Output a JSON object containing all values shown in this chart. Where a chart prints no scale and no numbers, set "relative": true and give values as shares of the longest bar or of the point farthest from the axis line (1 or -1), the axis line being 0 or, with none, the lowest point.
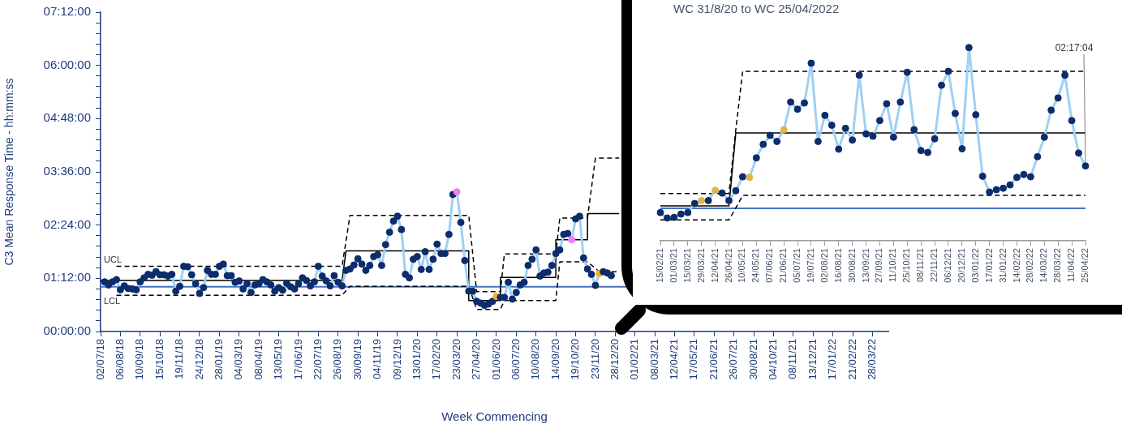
{
  "chart_data": [
    {
      "type": "line",
      "xlabel": "Week Commencing",
      "ylabel": "C3 Mean Response Time - hh:mm:ss",
      "marker": "circle",
      "x": [
        "2018-07-09",
        "2018-07-16",
        "2018-07-23",
        "2018-07-30",
        "2018-08-06",
        "2018-08-13",
        "2018-08-20",
        "2018-08-27",
        "2018-09-03",
        "2018-09-10",
        "2018-09-17",
        "2018-09-24",
        "2018-10-01",
        "2018-10-08",
        "2018-10-15",
        "2018-10-22",
        "2018-10-29",
        "2018-11-05",
        "2018-11-12",
        "2018-11-19",
        "2018-11-26",
        "2018-12-03",
        "2018-12-10",
        "2018-12-17",
        "2018-12-24",
        "2018-12-31",
        "2019-01-07",
        "2019-01-14",
        "2019-01-21",
        "2019-01-28",
        "2019-02-04",
        "2019-02-11",
        "2019-02-18",
        "2019-02-25",
        "2019-03-04",
        "2019-03-11",
        "2019-03-18",
        "2019-03-25",
        "2019-04-01",
        "2019-04-08",
        "2019-04-15",
        "2019-04-22",
        "2019-04-29",
        "2019-05-06",
        "2019-05-13",
        "2019-05-20",
        "2019-05-27",
        "2019-06-03",
        "2019-06-10",
        "2019-06-17",
        "2019-06-24",
        "2019-07-01",
        "2019-07-08",
        "2019-07-15",
        "2019-07-22",
        "2019-07-29",
        "2019-08-05",
        "2019-08-12",
        "2019-08-19",
        "2019-08-26",
        "2019-09-02",
        "2019-09-09",
        "2019-09-16",
        "2019-09-23",
        "2019-09-30",
        "2019-10-07",
        "2019-10-14",
        "2019-10-21",
        "2019-10-28",
        "2019-11-04",
        "2019-11-11",
        "2019-11-18",
        "2019-11-25",
        "2019-12-02",
        "2019-12-09",
        "2019-12-16",
        "2019-12-23",
        "2019-12-30",
        "2020-01-06",
        "2020-01-13",
        "2020-01-20",
        "2020-01-27",
        "2020-02-03",
        "2020-02-10",
        "2020-02-17",
        "2020-02-24",
        "2020-03-02",
        "2020-03-09",
        "2020-03-16",
        "2020-03-23",
        "2020-03-30",
        "2020-04-06",
        "2020-04-13",
        "2020-04-20",
        "2020-04-27",
        "2020-05-04",
        "2020-05-11",
        "2020-05-18",
        "2020-05-25",
        "2020-06-01",
        "2020-06-08",
        "2020-06-15",
        "2020-06-22",
        "2020-06-29",
        "2020-07-06",
        "2020-07-13",
        "2020-07-20",
        "2020-07-27",
        "2020-08-03",
        "2020-08-10",
        "2020-08-17",
        "2020-08-24",
        "2020-08-31",
        "2020-09-07",
        "2020-09-14",
        "2020-09-21",
        "2020-09-28",
        "2020-10-05",
        "2020-10-12",
        "2020-10-19",
        "2020-10-26",
        "2020-11-02",
        "2020-11-09",
        "2020-11-16",
        "2020-11-23",
        "2020-11-30",
        "2020-12-07",
        "2020-12-14",
        "2020-12-21"
      ],
      "series": [
        {
          "color": "#9fd0f5",
          "values": [
            1.12,
            1.05,
            1.12,
            1.17,
            0.94,
            1.03,
            0.97,
            0.96,
            0.94,
            1.12,
            1.21,
            1.29,
            1.27,
            1.35,
            1.28,
            1.28,
            1.25,
            1.29,
            0.91,
            1.02,
            1.47,
            1.46,
            1.28,
            1.08,
            0.86,
            0.99,
            1.38,
            1.29,
            1.29,
            1.47,
            1.52,
            1.26,
            1.26,
            1.11,
            1.14,
            0.96,
            1.08,
            0.88,
            1.05,
            1.08,
            1.17,
            1.12,
            1.05,
            0.91,
            0.99,
            0.93,
            1.09,
            1.01,
            0.96,
            1.08,
            1.21,
            1.15,
            1.03,
            1.12,
            1.47,
            1.25,
            1.14,
            1.03,
            1.26,
            1.11,
            1.03,
            1.38,
            1.41,
            1.5,
            1.64,
            1.52,
            1.38,
            1.49,
            1.69,
            1.73,
            1.49,
            1.96,
            2.24,
            2.49,
            2.6,
            2.3,
            1.29,
            1.21,
            1.63,
            1.69,
            1.4,
            1.8,
            1.4,
            1.63,
            1.97,
            1.76,
            1.76,
            2.19,
            3.09,
            3.15,
            2.46,
            1.6,
            0.91,
            0.91,
            0.68,
            0.64,
            0.59,
            0.62,
            0.68,
            0.79,
            0.77,
            0.77,
            1.11,
            0.73,
            0.88,
            1.05,
            1.11,
            1.49,
            1.63,
            1.84,
            1.25,
            1.32,
            1.34,
            1.49,
            1.76,
            1.84,
            2.19,
            2.21,
            2.07,
            2.54,
            2.6,
            1.66,
            1.41,
            1.29,
            1.04,
            1.31,
            1.35,
            1.32,
            1.26
          ],
          "colors": [
            "#0d2c6c",
            "#0d2c6c",
            "#0d2c6c",
            "#0d2c6c",
            "#0d2c6c",
            "#0d2c6c",
            "#0d2c6c",
            "#0d2c6c",
            "#0d2c6c",
            "#0d2c6c",
            "#0d2c6c",
            "#0d2c6c",
            "#0d2c6c",
            "#0d2c6c",
            "#0d2c6c",
            "#0d2c6c",
            "#0d2c6c",
            "#0d2c6c",
            "#0d2c6c",
            "#0d2c6c",
            "#0d2c6c",
            "#0d2c6c",
            "#0d2c6c",
            "#0d2c6c",
            "#0d2c6c",
            "#0d2c6c",
            "#0d2c6c",
            "#0d2c6c",
            "#0d2c6c",
            "#0d2c6c",
            "#0d2c6c",
            "#0d2c6c",
            "#0d2c6c",
            "#0d2c6c",
            "#0d2c6c",
            "#0d2c6c",
            "#0d2c6c",
            "#0d2c6c",
            "#0d2c6c",
            "#0d2c6c",
            "#0d2c6c",
            "#0d2c6c",
            "#0d2c6c",
            "#0d2c6c",
            "#0d2c6c",
            "#0d2c6c",
            "#0d2c6c",
            "#0d2c6c",
            "#0d2c6c",
            "#0d2c6c",
            "#0d2c6c",
            "#0d2c6c",
            "#0d2c6c",
            "#0d2c6c",
            "#0d2c6c",
            "#0d2c6c",
            "#0d2c6c",
            "#0d2c6c",
            "#0d2c6c",
            "#0d2c6c",
            "#0d2c6c",
            "#0d2c6c",
            "#0d2c6c",
            "#0d2c6c",
            "#0d2c6c",
            "#0d2c6c",
            "#0d2c6c",
            "#0d2c6c",
            "#0d2c6c",
            "#0d2c6c",
            "#0d2c6c",
            "#0d2c6c",
            "#0d2c6c",
            "#0d2c6c",
            "#0d2c6c",
            "#0d2c6c",
            "#0d2c6c",
            "#0d2c6c",
            "#0d2c6c",
            "#0d2c6c",
            "#0d2c6c",
            "#0d2c6c",
            "#0d2c6c",
            "#0d2c6c",
            "#0d2c6c",
            "#0d2c6c",
            "#0d2c6c",
            "#0d2c6c",
            "#0d2c6c",
            "#f07ef0",
            "#0d2c6c",
            "#0d2c6c",
            "#0d2c6c",
            "#0d2c6c",
            "#0d2c6c",
            "#0d2c6c",
            "#0d2c6c",
            "#0d2c6c",
            "#0d2c6c",
            "#f2b01e",
            "#0d2c6c",
            "#0d2c6c",
            "#0d2c6c",
            "#0d2c6c",
            "#0d2c6c",
            "#0d2c6c",
            "#0d2c6c",
            "#0d2c6c",
            "#0d2c6c",
            "#0d2c6c",
            "#0d2c6c",
            "#0d2c6c",
            "#0d2c6c",
            "#0d2c6c",
            "#0d2c6c",
            "#0d2c6c",
            "#0d2c6c",
            "#0d2c6c",
            "#f07ef0",
            "#0d2c6c",
            "#0d2c6c",
            "#0d2c6c",
            "#0d2c6c",
            "#0d2c6c",
            "#0d2c6c",
            "#f2b01e",
            "#0d2c6c",
            "#0d2c6c",
            "#0d2c6c"
          ]
        },
        {
          "name": "UCL",
          "color": "#000000",
          "line_style": "dashed",
          "marker": "none",
          "x": [
            "2018-07-30",
            "2019-09-02",
            "2019-09-16",
            "2020-04-13",
            "2020-04-27",
            "2020-06-08",
            "2020-06-15",
            "2020-09-14",
            "2020-09-21",
            "2020-11-09",
            "2020-11-23",
            "2021-01-04"
          ],
          "values": [
            1.47,
            1.47,
            2.62,
            2.62,
            0.9,
            0.9,
            1.75,
            1.75,
            2.56,
            2.56,
            3.91,
            3.91
          ]
        },
        {
          "color": "#000000",
          "marker": "none",
          "x": [
            "2018-07-02",
            "2019-09-02",
            "2019-09-09",
            "2020-04-13",
            "2020-04-13",
            "2020-06-08",
            "2020-06-08",
            "2020-09-14",
            "2020-09-14",
            "2020-11-09",
            "2020-11-09",
            "2021-01-04"
          ],
          "values": [
            1.15,
            1.15,
            1.82,
            1.82,
            0.7,
            0.7,
            1.22,
            1.22,
            2.07,
            2.07,
            2.66,
            2.66
          ]
        },
        {
          "name": "LCL",
          "color": "#000000",
          "line_style": "dashed",
          "marker": "none",
          "x": [
            "2018-07-30",
            "2019-09-02",
            "2019-09-16",
            "2020-04-13",
            "2020-04-27",
            "2020-06-08",
            "2020-06-15",
            "2020-09-14",
            "2020-09-21",
            "2020-11-09",
            "2020-11-30",
            "2021-01-04"
          ],
          "values": [
            0.82,
            0.82,
            1.02,
            1.02,
            0.5,
            0.5,
            0.7,
            0.7,
            1.57,
            1.57,
            1.35,
            1.35
          ]
        }
      ],
      "ref_lines": [
        {
          "axis": "y",
          "value": 1.01,
          "color": "#4472c4"
        }
      ],
      "xlim": [
        "2018-07-02",
        "2022-04-25"
      ],
      "xticks": [
        {
          "value": "2018-07-02",
          "label": "02/07/18"
        },
        {
          "value": "2018-08-06",
          "label": "06/08/18"
        },
        {
          "value": "2018-09-10",
          "label": "10/09/18"
        },
        {
          "value": "2018-10-15",
          "label": "15/10/18"
        },
        {
          "value": "2018-11-19",
          "label": "19/11/18"
        },
        {
          "value": "2018-12-24",
          "label": "24/12/18"
        },
        {
          "value": "2019-01-28",
          "label": "28/01/19"
        },
        {
          "value": "2019-03-04",
          "label": "04/03/19"
        },
        {
          "value": "2019-04-08",
          "label": "08/04/19"
        },
        {
          "value": "2019-05-13",
          "label": "13/05/19"
        },
        {
          "value": "2019-06-17",
          "label": "17/06/19"
        },
        {
          "value": "2019-07-22",
          "label": "22/07/19"
        },
        {
          "value": "2019-08-26",
          "label": "26/08/19"
        },
        {
          "value": "2019-09-30",
          "label": "30/09/19"
        },
        {
          "value": "2019-11-04",
          "label": "04/11/19"
        },
        {
          "value": "2019-12-09",
          "label": "09/12/19"
        },
        {
          "value": "2020-01-13",
          "label": "13/01/20"
        },
        {
          "value": "2020-02-17",
          "label": "17/02/20"
        },
        {
          "value": "2020-03-23",
          "label": "23/03/20"
        },
        {
          "value": "2020-04-27",
          "label": "27/04/20"
        },
        {
          "value": "2020-06-01",
          "label": "01/06/20"
        },
        {
          "value": "2020-07-06",
          "label": "06/07/20"
        },
        {
          "value": "2020-08-10",
          "label": "10/08/20"
        },
        {
          "value": "2020-09-14",
          "label": "14/09/20"
        },
        {
          "value": "2020-10-19",
          "label": "19/10/20"
        },
        {
          "value": "2020-11-23",
          "label": "23/11/20"
        },
        {
          "value": "2020-12-28",
          "label": "28/12/20"
        },
        {
          "value": "2021-02-01",
          "label": "01/02/21"
        },
        {
          "value": "2021-03-08",
          "label": "08/03/21"
        },
        {
          "value": "2021-04-12",
          "label": "12/04/21"
        },
        {
          "value": "2021-05-17",
          "label": "17/05/21"
        },
        {
          "value": "2021-06-21",
          "label": "21/06/21"
        },
        {
          "value": "2021-07-26",
          "label": "26/07/21"
        },
        {
          "value": "2021-08-30",
          "label": "30/08/21"
        },
        {
          "value": "2021-10-04",
          "label": "04/10/21"
        },
        {
          "value": "2021-11-08",
          "label": "08/11/21"
        },
        {
          "value": "2021-12-13",
          "label": "13/12/21"
        },
        {
          "value": "2022-01-17",
          "label": "17/01/22"
        },
        {
          "value": "2022-02-21",
          "label": "21/02/22"
        },
        {
          "value": "2022-03-28",
          "label": "28/03/22"
        }
      ],
      "ylim": [
        0,
        7.2
      ],
      "yticks": [
        {
          "value": 0,
          "label": "00:00:00"
        },
        {
          "value": 0.24,
          "label": null
        },
        {
          "value": 0.48,
          "label": null
        },
        {
          "value": 0.72,
          "label": null
        },
        {
          "value": 0.96,
          "label": null
        },
        {
          "value": 1.2,
          "label": "01:12:00"
        },
        {
          "value": 1.44,
          "label": null
        },
        {
          "value": 1.68,
          "label": null
        },
        {
          "value": 1.92,
          "label": null
        },
        {
          "value": 2.16,
          "label": null
        },
        {
          "value": 2.4,
          "label": "02:24:00"
        },
        {
          "value": 2.64,
          "label": null
        },
        {
          "value": 2.88,
          "label": null
        },
        {
          "value": 3.12,
          "label": null
        },
        {
          "value": 3.36,
          "label": null
        },
        {
          "value": 3.6,
          "label": "03:36:00"
        },
        {
          "value": 3.84,
          "label": null
        },
        {
          "value": 4.08,
          "label": null
        },
        {
          "value": 4.32,
          "label": null
        },
        {
          "value": 4.56,
          "label": null
        },
        {
          "value": 4.8,
          "label": "04:48:00"
        },
        {
          "value": 5.04,
          "label": null
        },
        {
          "value": 5.28,
          "label": null
        },
        {
          "value": 5.52,
          "label": null
        },
        {
          "value": 5.76,
          "label": null
        },
        {
          "value": 6,
          "label": "06:00:00"
        },
        {
          "value": 6.24,
          "label": null
        },
        {
          "value": 6.48,
          "label": null
        },
        {
          "value": 6.72,
          "label": null
        },
        {
          "value": 6.96,
          "label": null
        },
        {
          "value": 7.2,
          "label": "07:12:00"
        }
      ]
    },
    {
      "type": "line",
      "relative": true,
      "title": "WC 31/8/20 to WC 25/04/2022",
      "marker": "circle",
      "categories": [
        "15/02/21",
        null,
        "01/03/21",
        null,
        "15/03/21",
        null,
        "29/03/21",
        null,
        "12/04/21",
        null,
        "26/04/21",
        null,
        "10/05/21",
        null,
        "24/05/21",
        null,
        "07/06/21",
        null,
        "21/06/21",
        null,
        "05/07/21",
        null,
        "19/07/21",
        null,
        "02/08/21",
        null,
        "16/08/21",
        null,
        "30/08/21",
        null,
        "13/09/21",
        null,
        "27/09/21",
        null,
        "11/10/21",
        null,
        "25/10/21",
        null,
        "08/11/21",
        null,
        "22/11/21",
        null,
        "06/12/21",
        null,
        "20/12/21",
        null,
        "03/01/22",
        null,
        "17/01/22",
        null,
        "31/01/22",
        null,
        "14/02/22",
        null,
        "28/02/22",
        null,
        "14/03/22",
        null,
        "28/03/22",
        null,
        "11/04/22",
        null,
        "25/04/22"
      ],
      "series": [
        {
          "color": "#9fd0f5",
          "values": [
            0.146,
            0.118,
            0.121,
            0.138,
            0.146,
            0.193,
            0.208,
            0.208,
            0.261,
            0.247,
            0.208,
            0.259,
            0.331,
            0.328,
            0.429,
            0.499,
            0.545,
            0.514,
            0.575,
            0.718,
            0.681,
            0.713,
            0.919,
            0.514,
            0.649,
            0.598,
            0.474,
            0.582,
            0.521,
            0.857,
            0.553,
            0.541,
            0.622,
            0.709,
            0.536,
            0.718,
            0.872,
            0.575,
            0.467,
            0.457,
            0.528,
            0.805,
            0.877,
            0.659,
            0.476,
            1,
            0.652,
            0.334,
            0.252,
            0.264,
            0.272,
            0.289,
            0.328,
            0.343,
            0.331,
            0.435,
            0.536,
            0.676,
            0.739,
            0.857,
            0.622,
            0.454,
            0.387
          ],
          "colors": [
            "#0d2c6c",
            "#0d2c6c",
            "#0d2c6c",
            "#0d2c6c",
            "#0d2c6c",
            "#0d2c6c",
            "#e2b447",
            "#0d2c6c",
            "#e2b447",
            "#0d2c6c",
            "#0d2c6c",
            "#0d2c6c",
            "#0d2c6c",
            "#e2b447",
            "#0d2c6c",
            "#0d2c6c",
            "#0d2c6c",
            "#0d2c6c",
            "#e2b447",
            "#0d2c6c",
            "#0d2c6c",
            "#0d2c6c",
            "#0d2c6c",
            "#0d2c6c",
            "#0d2c6c",
            "#0d2c6c",
            "#0d2c6c",
            "#0d2c6c",
            "#0d2c6c",
            "#0d2c6c",
            "#0d2c6c",
            "#0d2c6c",
            "#0d2c6c",
            "#0d2c6c",
            "#0d2c6c",
            "#0d2c6c",
            "#0d2c6c",
            "#0d2c6c",
            "#0d2c6c",
            "#0d2c6c",
            "#0d2c6c",
            "#0d2c6c",
            "#0d2c6c",
            "#0d2c6c",
            "#0d2c6c",
            "#0d2c6c",
            "#0d2c6c",
            "#0d2c6c",
            "#0d2c6c",
            "#0d2c6c",
            "#0d2c6c",
            "#0d2c6c",
            "#0d2c6c",
            "#0d2c6c",
            "#0d2c6c",
            "#0d2c6c",
            "#0d2c6c",
            "#0d2c6c",
            "#0d2c6c",
            "#0d2c6c",
            "#0d2c6c",
            "#0d2c6c",
            "#0d2c6c"
          ]
        },
        {
          "color": "#000000",
          "line_style": "dashed",
          "marker": "none",
          "values": [
            0.244,
            0.244,
            0.244,
            0.244,
            0.244,
            0.244,
            0.244,
            0.244,
            0.244,
            0.244,
            0.244,
            0.575,
            0.877,
            0.877,
            0.877,
            0.877,
            0.877,
            0.877,
            0.877,
            0.877,
            0.877,
            0.877,
            0.877,
            0.877,
            0.877,
            0.877,
            0.877,
            0.877,
            0.877,
            0.877,
            0.877,
            0.877,
            0.877,
            0.877,
            0.877,
            0.877,
            0.877,
            0.877,
            0.877,
            0.877,
            0.877,
            0.877,
            0.877,
            0.877,
            0.877,
            0.877,
            0.877,
            0.877,
            0.877,
            0.877,
            0.877,
            0.877,
            0.877,
            0.877,
            0.877,
            0.877,
            0.877,
            0.877,
            0.877,
            0.877,
            0.877,
            0.877,
            0.877
          ]
        },
        {
          "color": "#000000",
          "marker": "none",
          "values": [
            0.18,
            0.18,
            0.18,
            0.18,
            0.18,
            0.18,
            0.18,
            0.18,
            0.18,
            0.18,
            0.18,
            0.558,
            0.558,
            0.558,
            0.558,
            0.558,
            0.558,
            0.558,
            0.558,
            0.558,
            0.558,
            0.558,
            0.558,
            0.558,
            0.558,
            0.558,
            0.558,
            0.558,
            0.558,
            0.558,
            0.558,
            0.558,
            0.558,
            0.558,
            0.558,
            0.558,
            0.558,
            0.558,
            0.558,
            0.558,
            0.558,
            0.558,
            0.558,
            0.558,
            0.558,
            0.558,
            0.558,
            0.558,
            0.558,
            0.558,
            0.558,
            0.558,
            0.558,
            0.558,
            0.558,
            0.558,
            0.558,
            0.558,
            0.558,
            0.558,
            0.558,
            0.558,
            0.558
          ]
        },
        {
          "color": "#000000",
          "line_style": "dashed",
          "marker": "none",
          "values": [
            0.108,
            0.108,
            0.108,
            0.108,
            0.108,
            0.108,
            0.108,
            0.108,
            0.108,
            0.108,
            0.108,
            0.17,
            0.235,
            0.235,
            0.235,
            0.235,
            0.235,
            0.235,
            0.235,
            0.235,
            0.235,
            0.235,
            0.235,
            0.235,
            0.235,
            0.235,
            0.235,
            0.235,
            0.235,
            0.235,
            0.235,
            0.235,
            0.235,
            0.235,
            0.235,
            0.235,
            0.235,
            0.235,
            0.235,
            0.235,
            0.235,
            0.235,
            0.235,
            0.235,
            0.235,
            0.235,
            0.235,
            0.235,
            0.235,
            0.235,
            0.235,
            0.235,
            0.235,
            0.235,
            0.235,
            0.235,
            0.235,
            0.235,
            0.235,
            0.235,
            0.235,
            0.235,
            0.235
          ]
        }
      ],
      "ref_lines": [
        {
          "axis": "y",
          "value": 0.168,
          "color": "#4472c4"
        }
      ],
      "annotations": [
        {
          "text": "02:17:04",
          "x": "25/04/22",
          "y": 0.387
        }
      ]
    }
  ]
}
